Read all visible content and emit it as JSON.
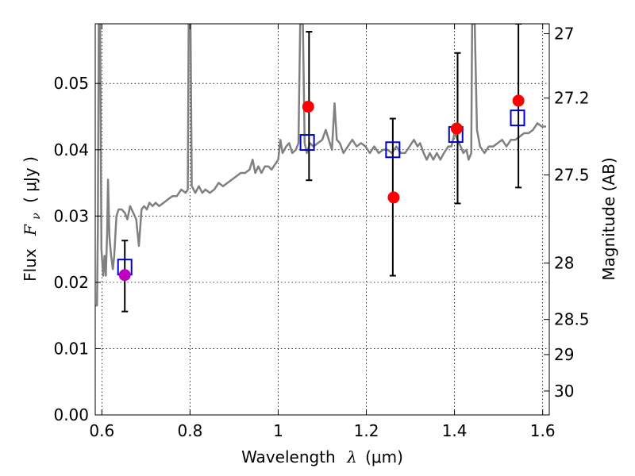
{
  "chart_data": {
    "type": "scatter",
    "xlabel": "Wavelength",
    "xlabel_symbol": "λ",
    "xlabel_unit": "(μm)",
    "ylabel": "Flux",
    "ylabel_symbol": "F",
    "ylabel_subscript": "ν",
    "ylabel_unit": "( μJy )",
    "y2label": "Magnitude (AB)",
    "xlim": [
      0.585,
      1.615
    ],
    "ylim": [
      0.0,
      0.059
    ],
    "grid": true,
    "x_ticks": [
      0.6,
      0.8,
      1.0,
      1.2,
      1.4,
      1.6
    ],
    "x_tick_labels": [
      "0.6",
      "0.8",
      "1",
      "1.2",
      "1.4",
      "1.6"
    ],
    "y_ticks": [
      0.0,
      0.01,
      0.02,
      0.03,
      0.04,
      0.05
    ],
    "y_tick_labels": [
      "0.00",
      "0.01",
      "0.02",
      "0.03",
      "0.04",
      "0.05"
    ],
    "y2_ticks": [
      {
        "label": "27",
        "flux": 0.0575
      },
      {
        "label": "27.2",
        "flux": 0.0478
      },
      {
        "label": "27.5",
        "flux": 0.0362
      },
      {
        "label": "28",
        "flux": 0.0229
      },
      {
        "label": "28.5",
        "flux": 0.0144
      },
      {
        "label": "29",
        "flux": 0.0091
      },
      {
        "label": "30",
        "flux": 0.0036
      }
    ],
    "series": [
      {
        "kind": "line",
        "color": "#808080",
        "points": [
          [
            0.586,
            0.0165
          ],
          [
            0.589,
            0.0165
          ],
          [
            0.591,
            0.028
          ],
          [
            0.593,
            0.059
          ],
          [
            0.596,
            0.059
          ],
          [
            0.599,
            0.025
          ],
          [
            0.603,
            0.021
          ],
          [
            0.606,
            0.024
          ],
          [
            0.609,
            0.021
          ],
          [
            0.612,
            0.0275
          ],
          [
            0.614,
            0.0355
          ],
          [
            0.617,
            0.027
          ],
          [
            0.621,
            0.024
          ],
          [
            0.625,
            0.022
          ],
          [
            0.628,
            0.024
          ],
          [
            0.633,
            0.03
          ],
          [
            0.638,
            0.031
          ],
          [
            0.645,
            0.031
          ],
          [
            0.652,
            0.0305
          ],
          [
            0.658,
            0.0295
          ],
          [
            0.664,
            0.0315
          ],
          [
            0.671,
            0.0305
          ],
          [
            0.678,
            0.0295
          ],
          [
            0.684,
            0.0255
          ],
          [
            0.69,
            0.031
          ],
          [
            0.696,
            0.0315
          ],
          [
            0.702,
            0.031
          ],
          [
            0.708,
            0.032
          ],
          [
            0.715,
            0.0315
          ],
          [
            0.722,
            0.032
          ],
          [
            0.73,
            0.0315
          ],
          [
            0.74,
            0.032
          ],
          [
            0.75,
            0.0325
          ],
          [
            0.76,
            0.033
          ],
          [
            0.77,
            0.033
          ],
          [
            0.78,
            0.034
          ],
          [
            0.79,
            0.0335
          ],
          [
            0.795,
            0.034
          ],
          [
            0.797,
            0.059
          ],
          [
            0.801,
            0.059
          ],
          [
            0.804,
            0.0345
          ],
          [
            0.812,
            0.0335
          ],
          [
            0.82,
            0.0345
          ],
          [
            0.828,
            0.0335
          ],
          [
            0.835,
            0.034
          ],
          [
            0.845,
            0.0335
          ],
          [
            0.855,
            0.034
          ],
          [
            0.865,
            0.035
          ],
          [
            0.875,
            0.0345
          ],
          [
            0.885,
            0.035
          ],
          [
            0.895,
            0.0355
          ],
          [
            0.905,
            0.036
          ],
          [
            0.915,
            0.0365
          ],
          [
            0.925,
            0.0365
          ],
          [
            0.935,
            0.037
          ],
          [
            0.942,
            0.0385
          ],
          [
            0.948,
            0.0365
          ],
          [
            0.955,
            0.0375
          ],
          [
            0.962,
            0.0365
          ],
          [
            0.97,
            0.0375
          ],
          [
            0.978,
            0.0375
          ],
          [
            0.985,
            0.037
          ],
          [
            0.995,
            0.038
          ],
          [
            1.0,
            0.0385
          ],
          [
            1.005,
            0.0415
          ],
          [
            1.01,
            0.0395
          ],
          [
            1.018,
            0.0405
          ],
          [
            1.025,
            0.041
          ],
          [
            1.032,
            0.0395
          ],
          [
            1.04,
            0.04
          ],
          [
            1.046,
            0.041
          ],
          [
            1.05,
            0.059
          ],
          [
            1.056,
            0.059
          ],
          [
            1.06,
            0.041
          ],
          [
            1.065,
            0.0395
          ],
          [
            1.072,
            0.041
          ],
          [
            1.08,
            0.0405
          ],
          [
            1.09,
            0.041
          ],
          [
            1.1,
            0.0415
          ],
          [
            1.108,
            0.043
          ],
          [
            1.115,
            0.0415
          ],
          [
            1.122,
            0.04
          ],
          [
            1.128,
            0.047
          ],
          [
            1.133,
            0.0415
          ],
          [
            1.14,
            0.041
          ],
          [
            1.148,
            0.0395
          ],
          [
            1.158,
            0.0405
          ],
          [
            1.168,
            0.0415
          ],
          [
            1.178,
            0.0405
          ],
          [
            1.188,
            0.041
          ],
          [
            1.198,
            0.0405
          ],
          [
            1.208,
            0.0395
          ],
          [
            1.218,
            0.0405
          ],
          [
            1.228,
            0.0395
          ],
          [
            1.238,
            0.04
          ],
          [
            1.248,
            0.04
          ],
          [
            1.258,
            0.0395
          ],
          [
            1.268,
            0.0405
          ],
          [
            1.278,
            0.0395
          ],
          [
            1.288,
            0.0395
          ],
          [
            1.298,
            0.0405
          ],
          [
            1.308,
            0.0415
          ],
          [
            1.316,
            0.0405
          ],
          [
            1.322,
            0.041
          ],
          [
            1.33,
            0.0395
          ],
          [
            1.337,
            0.0385
          ],
          [
            1.344,
            0.0395
          ],
          [
            1.352,
            0.0385
          ],
          [
            1.36,
            0.0395
          ],
          [
            1.368,
            0.0385
          ],
          [
            1.376,
            0.0395
          ],
          [
            1.386,
            0.0405
          ],
          [
            1.393,
            0.0405
          ],
          [
            1.4,
            0.0425
          ],
          [
            1.407,
            0.0415
          ],
          [
            1.414,
            0.0405
          ],
          [
            1.42,
            0.0395
          ],
          [
            1.427,
            0.04
          ],
          [
            1.432,
            0.0385
          ],
          [
            1.438,
            0.0395
          ],
          [
            1.44,
            0.059
          ],
          [
            1.446,
            0.059
          ],
          [
            1.451,
            0.043
          ],
          [
            1.458,
            0.0405
          ],
          [
            1.468,
            0.0395
          ],
          [
            1.478,
            0.0405
          ],
          [
            1.488,
            0.0405
          ],
          [
            1.498,
            0.041
          ],
          [
            1.508,
            0.0415
          ],
          [
            1.518,
            0.0405
          ],
          [
            1.528,
            0.0415
          ],
          [
            1.538,
            0.0415
          ],
          [
            1.548,
            0.042
          ],
          [
            1.558,
            0.0425
          ],
          [
            1.568,
            0.0425
          ],
          [
            1.578,
            0.043
          ],
          [
            1.588,
            0.044
          ],
          [
            1.598,
            0.0435
          ],
          [
            1.608,
            0.0435
          ]
        ]
      },
      {
        "kind": "errorbars",
        "color": "#000000",
        "points": [
          {
            "x": 0.652,
            "low": 0.0156,
            "high": 0.0263
          },
          {
            "x": 1.07,
            "low": 0.0354,
            "high": 0.0578
          },
          {
            "x": 1.26,
            "low": 0.021,
            "high": 0.0447
          },
          {
            "x": 1.407,
            "low": 0.0319,
            "high": 0.0546
          },
          {
            "x": 1.545,
            "low": 0.0343,
            "high": 0.059
          }
        ]
      },
      {
        "kind": "squares",
        "color": "#0000cc",
        "points": [
          [
            0.652,
            0.0223
          ],
          [
            1.066,
            0.0411
          ],
          [
            1.26,
            0.04
          ],
          [
            1.403,
            0.0423
          ],
          [
            1.543,
            0.0448
          ]
        ]
      },
      {
        "kind": "circles",
        "points": [
          {
            "x": 0.652,
            "y": 0.0211,
            "color": "#bf00bf"
          },
          {
            "x": 1.068,
            "y": 0.0465,
            "color": "#ff0000"
          },
          {
            "x": 1.262,
            "y": 0.0328,
            "color": "#ff0000"
          },
          {
            "x": 1.405,
            "y": 0.0432,
            "color": "#ff0000"
          },
          {
            "x": 1.545,
            "y": 0.0474,
            "color": "#ff0000"
          }
        ]
      }
    ]
  }
}
